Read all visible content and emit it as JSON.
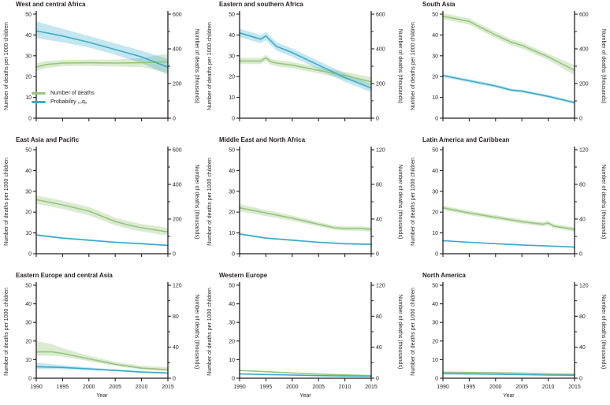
{
  "colors": {
    "green": {
      "line": "#94c67c",
      "band": "rgba(148,198,124,0.35)"
    },
    "blue": {
      "line": "#3aabca",
      "band": "rgba(58,171,202,0.30)"
    },
    "axis": "#231f20"
  },
  "legend": {
    "items": [
      {
        "label": "Number of deaths",
        "color": "green"
      },
      {
        "label": "Probability ₁₀q₅",
        "color": "blue"
      }
    ]
  },
  "axes": {
    "left_title": "Number of deaths per 1000 children",
    "right_title": "Number of deaths (thousands)",
    "x_title": "Year",
    "left_max": 50,
    "left_ticks": [
      0,
      10,
      20,
      30,
      40,
      50
    ],
    "x_ticks": [
      1990,
      1995,
      2000,
      2005,
      2010,
      2015
    ],
    "x_range": [
      1990,
      2015
    ],
    "grid": false,
    "legend_position": "inside bottom-left of first panel"
  },
  "chart_data": [
    {
      "type": "line",
      "title": "West and central Africa",
      "right_max": 600,
      "right_ticks": [
        0,
        200,
        400,
        600
      ],
      "series": [
        {
          "name": "Number of deaths",
          "axis": "right",
          "unit": "thousands",
          "color": "green",
          "x": [
            1990,
            1992,
            1995,
            2000,
            2005,
            2010,
            2015
          ],
          "y": [
            295,
            310,
            318,
            320,
            318,
            320,
            325
          ],
          "lo": [
            272,
            290,
            300,
            302,
            298,
            295,
            262
          ],
          "hi": [
            318,
            330,
            336,
            338,
            338,
            348,
            372
          ]
        },
        {
          "name": "Probability 10q5",
          "axis": "left",
          "unit": "deaths per 1000 children",
          "color": "blue",
          "x": [
            1990,
            1995,
            2000,
            2005,
            2010,
            2015
          ],
          "y": [
            42,
            39.5,
            36.5,
            33,
            29.5,
            24.5
          ],
          "lo": [
            38.5,
            36.5,
            34,
            30.5,
            26.5,
            21
          ],
          "hi": [
            46.5,
            43,
            39.5,
            36,
            32.5,
            28.5
          ]
        }
      ]
    },
    {
      "type": "line",
      "title": "Eastern and southern Africa",
      "right_max": 600,
      "right_ticks": [
        0,
        200,
        400,
        600
      ],
      "series": [
        {
          "name": "Number of deaths",
          "axis": "right",
          "unit": "thousands",
          "color": "green",
          "x": [
            1990,
            1992,
            1994,
            1995,
            1996,
            1997,
            2000,
            2005,
            2010,
            2015
          ],
          "y": [
            330,
            330,
            330,
            348,
            324,
            318,
            306,
            276,
            246,
            210
          ],
          "lo": [
            312,
            312,
            312,
            330,
            306,
            300,
            288,
            258,
            225,
            186
          ],
          "hi": [
            348,
            348,
            348,
            366,
            342,
            336,
            324,
            294,
            267,
            237
          ]
        },
        {
          "name": "Probability 10q5",
          "axis": "left",
          "unit": "deaths per 1000 children",
          "color": "blue",
          "x": [
            1990,
            1992,
            1994,
            1995,
            1996,
            1997,
            2000,
            2005,
            2010,
            2015
          ],
          "y": [
            41,
            39.5,
            38,
            39.5,
            37,
            34.5,
            31.5,
            25.5,
            19.5,
            14.5
          ],
          "lo": [
            39,
            37.5,
            36,
            37.5,
            35,
            32.5,
            29.5,
            23.5,
            17.5,
            12.5
          ],
          "hi": [
            43,
            41.5,
            40,
            41.5,
            39,
            36.5,
            33.5,
            27.5,
            21.5,
            16.5
          ]
        }
      ]
    },
    {
      "type": "line",
      "title": "South Asia",
      "right_max": 600,
      "right_ticks": [
        0,
        200,
        400,
        600
      ],
      "series": [
        {
          "name": "Number of deaths",
          "axis": "right",
          "unit": "thousands",
          "color": "green",
          "x": [
            1990,
            1995,
            2000,
            2003,
            2005,
            2010,
            2015
          ],
          "y": [
            588,
            558,
            480,
            438,
            420,
            354,
            276
          ],
          "lo": [
            570,
            540,
            462,
            420,
            402,
            336,
            248
          ],
          "hi": [
            606,
            576,
            498,
            456,
            438,
            372,
            306
          ]
        },
        {
          "name": "Probability 10q5",
          "axis": "left",
          "unit": "deaths per 1000 children",
          "color": "blue",
          "x": [
            1990,
            1995,
            2000,
            2003,
            2005,
            2010,
            2015
          ],
          "y": [
            20.5,
            18,
            15.5,
            13.5,
            13,
            10.5,
            7.5
          ],
          "lo": [
            19.7,
            17.2,
            14.7,
            12.8,
            12.3,
            9.8,
            6.8
          ],
          "hi": [
            21.3,
            18.8,
            16.3,
            14.2,
            13.7,
            11.2,
            8.2
          ]
        }
      ]
    },
    {
      "type": "line",
      "title": "East Asia and Pacific",
      "right_max": 600,
      "right_ticks": [
        0,
        200,
        400,
        600
      ],
      "series": [
        {
          "name": "Number of deaths",
          "axis": "right",
          "unit": "thousands",
          "color": "green",
          "x": [
            1990,
            1995,
            2000,
            2005,
            2008,
            2010,
            2015
          ],
          "y": [
            312,
            282,
            246,
            186,
            162,
            150,
            126
          ],
          "lo": [
            288,
            258,
            222,
            164,
            140,
            128,
            104
          ],
          "hi": [
            336,
            306,
            270,
            208,
            184,
            172,
            150
          ]
        },
        {
          "name": "Probability 10q5",
          "axis": "left",
          "unit": "deaths per 1000 children",
          "color": "blue",
          "x": [
            1990,
            1995,
            2000,
            2005,
            2010,
            2015
          ],
          "y": [
            9,
            7.5,
            6.5,
            5.5,
            4.8,
            4
          ],
          "lo": [
            8.5,
            7.1,
            6.1,
            5.1,
            4.4,
            3.6
          ],
          "hi": [
            9.5,
            7.9,
            6.9,
            5.9,
            5.2,
            4.4
          ]
        }
      ]
    },
    {
      "type": "line",
      "title": "Middle East and North Africa",
      "right_max": 120,
      "right_ticks": [
        0,
        40,
        80,
        120
      ],
      "series": [
        {
          "name": "Number of deaths",
          "axis": "right",
          "unit": "thousands",
          "color": "green",
          "x": [
            1990,
            1995,
            2000,
            2005,
            2008,
            2010,
            2013,
            2015
          ],
          "y": [
            53,
            47,
            41,
            34,
            30,
            29,
            29,
            28
          ],
          "lo": [
            49,
            43.5,
            38,
            31.5,
            27.5,
            26.5,
            26.5,
            25
          ],
          "hi": [
            57,
            50.5,
            44,
            36.5,
            32.5,
            31.5,
            31.5,
            31
          ]
        },
        {
          "name": "Probability 10q5",
          "axis": "left",
          "unit": "deaths per 1000 children",
          "color": "blue",
          "x": [
            1990,
            1995,
            2000,
            2005,
            2010,
            2015
          ],
          "y": [
            9.5,
            7.5,
            6.5,
            5.5,
            4.8,
            4.5
          ],
          "lo": [
            9,
            7.1,
            6.1,
            5.1,
            4.4,
            4
          ],
          "hi": [
            10,
            7.9,
            6.9,
            5.9,
            5.2,
            5
          ]
        }
      ]
    },
    {
      "type": "line",
      "title": "Latin America and Caribbean",
      "right_max": 120,
      "right_ticks": [
        0,
        40,
        80,
        120
      ],
      "series": [
        {
          "name": "Number of deaths",
          "axis": "right",
          "unit": "thousands",
          "color": "green",
          "x": [
            1990,
            1995,
            2000,
            2005,
            2009,
            2010,
            2011,
            2015
          ],
          "y": [
            53,
            47,
            42,
            37,
            34,
            35.5,
            32,
            28
          ],
          "lo": [
            50.5,
            44.5,
            39.5,
            34.5,
            31.5,
            33,
            29.5,
            25.5
          ],
          "hi": [
            55.5,
            49.5,
            44.5,
            39.5,
            36.5,
            38,
            34.5,
            30.5
          ]
        },
        {
          "name": "Probability 10q5",
          "axis": "left",
          "unit": "deaths per 1000 children",
          "color": "blue",
          "x": [
            1990,
            1995,
            2000,
            2005,
            2010,
            2015
          ],
          "y": [
            6.3,
            5.5,
            4.8,
            4.2,
            3.7,
            3.2
          ],
          "lo": [
            6,
            5.2,
            4.5,
            3.9,
            3.4,
            2.9
          ],
          "hi": [
            6.6,
            5.8,
            5.1,
            4.5,
            4,
            3.5
          ]
        }
      ]
    },
    {
      "type": "line",
      "title": "Eastern Europe and central Asia",
      "right_max": 120,
      "right_ticks": [
        0,
        40,
        80,
        120
      ],
      "series": [
        {
          "name": "Number of deaths",
          "axis": "right",
          "unit": "thousands",
          "color": "green",
          "x": [
            1990,
            1993,
            1995,
            2000,
            2005,
            2010,
            2015
          ],
          "y": [
            34,
            34,
            32,
            25,
            18,
            13,
            11
          ],
          "lo": [
            29,
            29,
            28,
            22,
            16,
            11,
            9
          ],
          "hi": [
            48,
            44,
            39,
            29,
            21,
            16,
            14
          ]
        },
        {
          "name": "Probability 10q5",
          "axis": "left",
          "unit": "deaths per 1000 children",
          "color": "blue",
          "x": [
            1990,
            1995,
            2000,
            2005,
            2010,
            2015
          ],
          "y": [
            6.2,
            5.8,
            5,
            4.2,
            3.3,
            2.8
          ],
          "lo": [
            4.9,
            4.8,
            4.3,
            3.7,
            2.9,
            2.4
          ],
          "hi": [
            8.4,
            7,
            5.8,
            4.8,
            3.8,
            3.3
          ]
        }
      ]
    },
    {
      "type": "line",
      "title": "Western Europe",
      "right_max": 120,
      "right_ticks": [
        0,
        40,
        80,
        120
      ],
      "series": [
        {
          "name": "Number of deaths",
          "axis": "right",
          "unit": "thousands",
          "color": "green",
          "x": [
            1990,
            1995,
            2000,
            2005,
            2010,
            2015
          ],
          "y": [
            10,
            8.4,
            6.7,
            5.3,
            4.3,
            3.4
          ],
          "lo": [
            9.4,
            7.8,
            6.1,
            4.7,
            3.8,
            2.9
          ],
          "hi": [
            10.6,
            9,
            7.3,
            5.9,
            4.8,
            3.9
          ]
        },
        {
          "name": "Probability 10q5",
          "axis": "left",
          "unit": "deaths per 1000 children",
          "color": "blue",
          "x": [
            1990,
            1995,
            2000,
            2005,
            2010,
            2015
          ],
          "y": [
            2.3,
            2,
            1.7,
            1.4,
            1.2,
            1.1
          ],
          "lo": [
            2.15,
            1.85,
            1.55,
            1.25,
            1.05,
            0.95
          ],
          "hi": [
            2.45,
            2.15,
            1.85,
            1.55,
            1.35,
            1.25
          ]
        }
      ]
    },
    {
      "type": "line",
      "title": "North America",
      "right_max": 120,
      "right_ticks": [
        0,
        40,
        80,
        120
      ],
      "series": [
        {
          "name": "Number of deaths",
          "axis": "right",
          "unit": "thousands",
          "color": "green",
          "x": [
            1990,
            1995,
            2000,
            2005,
            2010,
            2015
          ],
          "y": [
            7.7,
            7.4,
            7,
            6.5,
            5.5,
            5
          ],
          "lo": [
            7,
            6.7,
            6.3,
            5.8,
            4.8,
            4.3
          ],
          "hi": [
            8.4,
            8.1,
            7.7,
            7.2,
            6.2,
            5.7
          ]
        },
        {
          "name": "Probability 10q5",
          "axis": "left",
          "unit": "deaths per 1000 children",
          "color": "blue",
          "x": [
            1990,
            1995,
            2000,
            2005,
            2010,
            2015
          ],
          "y": [
            2.4,
            2.3,
            2.1,
            1.9,
            1.7,
            1.6
          ],
          "lo": [
            2.25,
            2.15,
            1.95,
            1.75,
            1.55,
            1.45
          ],
          "hi": [
            2.55,
            2.45,
            2.25,
            2.05,
            1.85,
            1.75
          ]
        }
      ]
    }
  ]
}
